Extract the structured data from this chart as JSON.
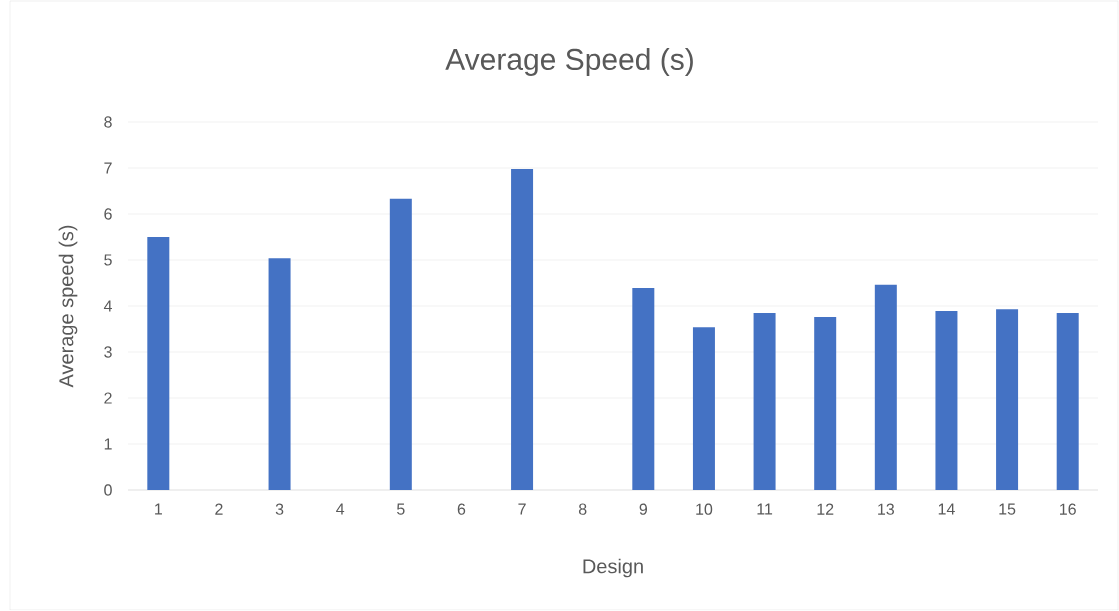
{
  "chart_data": {
    "type": "bar",
    "title": "Average Speed (s)",
    "xlabel": "Design",
    "ylabel": "Average speed (s)",
    "categories": [
      "1",
      "2",
      "3",
      "4",
      "5",
      "6",
      "7",
      "8",
      "9",
      "10",
      "11",
      "12",
      "13",
      "14",
      "15",
      "16"
    ],
    "values": [
      5.5,
      null,
      5.04,
      null,
      6.33,
      null,
      6.98,
      null,
      4.39,
      3.54,
      3.85,
      3.76,
      4.46,
      3.89,
      3.93,
      3.85
    ],
    "color": "#4472c4",
    "ylim": [
      0,
      8
    ],
    "yticks": [
      0,
      1,
      2,
      3,
      4,
      5,
      6,
      7,
      8
    ],
    "grid": "y"
  }
}
